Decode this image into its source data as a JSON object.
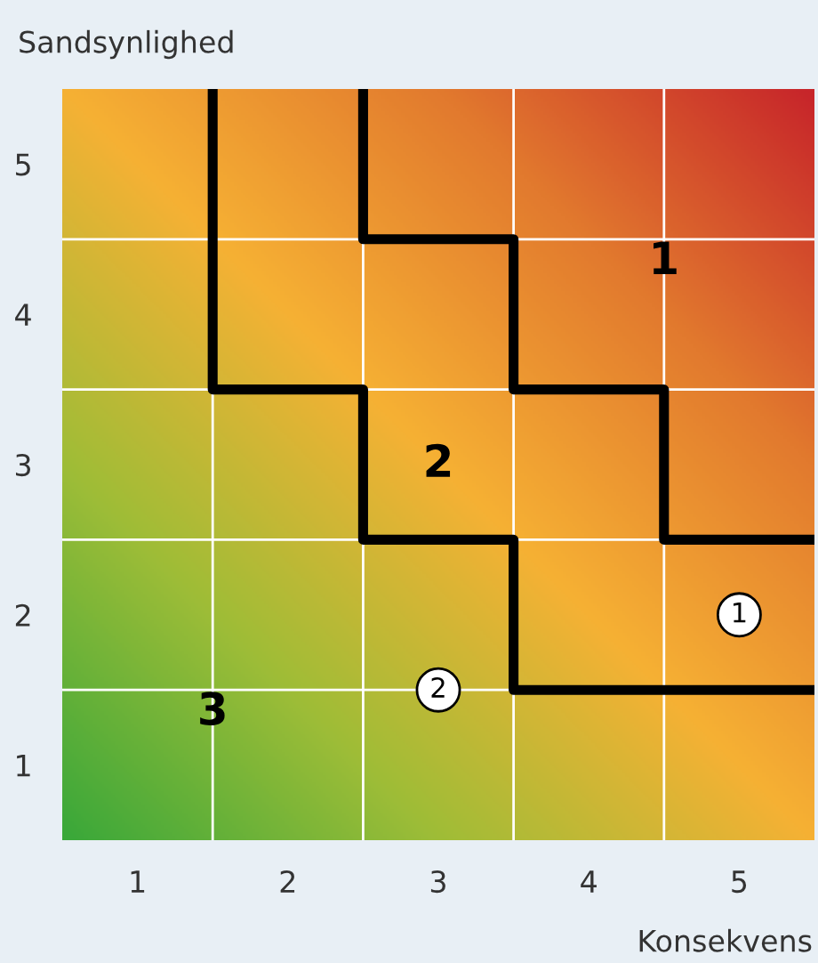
{
  "chart_data": {
    "type": "scatter",
    "xlabel": "Konsekvens",
    "ylabel": "Sandsynlighed",
    "xlim": [
      0.5,
      5.5
    ],
    "ylim": [
      0.5,
      5.5
    ],
    "xticks": [
      1,
      2,
      3,
      4,
      5,
      {
        "value": 1.5,
        "label": null
      },
      {
        "value": 2.5,
        "label": null
      },
      {
        "value": 3.5,
        "label": null
      },
      {
        "value": 4.5,
        "label": null
      }
    ],
    "yticks": [
      1,
      2,
      3,
      4,
      5,
      {
        "value": 1.5,
        "label": null
      },
      {
        "value": 2.5,
        "label": null
      },
      {
        "value": 3.5,
        "label": null
      },
      {
        "value": 4.5,
        "label": null
      }
    ],
    "grid": true,
    "series": [
      {
        "type": "line",
        "color": "#000000",
        "marker": "none",
        "x": [
          1.5,
          1.5,
          2.5,
          2.5,
          3.5,
          3.5,
          5.5
        ],
        "values": [
          5.5,
          3.5,
          3.5,
          2.5,
          2.5,
          1.5,
          1.5
        ]
      },
      {
        "type": "line",
        "color": "#000000",
        "marker": "none",
        "x": [
          2.5,
          2.5,
          3.5,
          3.5,
          4.5,
          4.5,
          5.5
        ],
        "values": [
          5.5,
          4.5,
          4.5,
          3.5,
          3.5,
          2.5,
          2.5
        ]
      },
      {
        "color": "#ffffff",
        "marker": "circle",
        "x": [
          5,
          3
        ],
        "values": [
          2,
          1.5
        ]
      }
    ],
    "annotations": [
      "1",
      "2",
      "3",
      {
        "text": "1",
        "x": 5,
        "y": 2
      },
      {
        "text": "2",
        "x": 3,
        "y": 1.5
      }
    ]
  }
}
